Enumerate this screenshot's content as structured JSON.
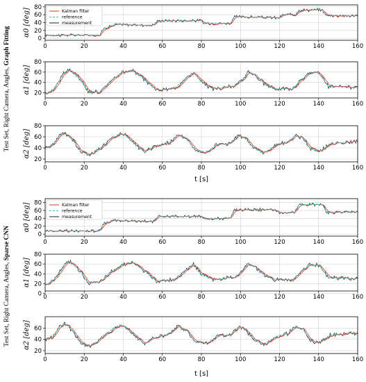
{
  "colors": {
    "kalman": "#e8452c",
    "reference": "#2ec4c8",
    "measurement": "#333333",
    "grid": "#cfcfcf"
  },
  "groups": [
    {
      "label_prefix": "Test Set, Right Camera, Angles, ",
      "label_bold": "Graph Fitting"
    },
    {
      "label_prefix": "Test Set, Right Camera, Angles, ",
      "label_bold": "Sparse CNN"
    }
  ],
  "chart_data": [
    {
      "type": "line",
      "group": 0,
      "ylabel": "α0 [deg]",
      "xlabel": "",
      "xlim": [
        0,
        160
      ],
      "ylim": [
        -5,
        85
      ],
      "yticks": [
        0,
        20,
        40,
        60,
        80
      ],
      "xticks": [
        0,
        20,
        40,
        60,
        80,
        100,
        120,
        140,
        160
      ],
      "grid": true,
      "legend": "top-left",
      "legend_entries": [
        "Kalman filter",
        "reference",
        "measurement"
      ],
      "series_ref": [
        [
          0,
          8
        ],
        [
          28,
          8
        ],
        [
          30,
          25
        ],
        [
          36,
          35
        ],
        [
          55,
          33
        ],
        [
          58,
          45
        ],
        [
          80,
          45
        ],
        [
          81,
          38
        ],
        [
          95,
          38
        ],
        [
          97,
          55
        ],
        [
          120,
          52
        ],
        [
          122,
          60
        ],
        [
          128,
          60
        ],
        [
          130,
          72
        ],
        [
          142,
          72
        ],
        [
          144,
          58
        ],
        [
          160,
          57
        ]
      ]
    },
    {
      "type": "line",
      "group": 0,
      "ylabel": "α1 [deg]",
      "xlabel": "",
      "xlim": [
        0,
        160
      ],
      "ylim": [
        10,
        80
      ],
      "yticks": [
        20,
        40,
        60,
        80
      ],
      "xticks": [
        0,
        20,
        40,
        60,
        80,
        100,
        120,
        140,
        160
      ],
      "grid": true,
      "series_ref": [
        [
          0,
          18
        ],
        [
          4,
          25
        ],
        [
          10,
          60
        ],
        [
          13,
          65
        ],
        [
          18,
          45
        ],
        [
          22,
          22
        ],
        [
          28,
          22
        ],
        [
          34,
          45
        ],
        [
          40,
          60
        ],
        [
          45,
          63
        ],
        [
          51,
          45
        ],
        [
          57,
          25
        ],
        [
          66,
          28
        ],
        [
          71,
          45
        ],
        [
          76,
          60
        ],
        [
          80,
          40
        ],
        [
          86,
          28
        ],
        [
          97,
          33
        ],
        [
          101,
          45
        ],
        [
          104,
          62
        ],
        [
          107,
          55
        ],
        [
          113,
          35
        ],
        [
          118,
          28
        ],
        [
          127,
          28
        ],
        [
          131,
          45
        ],
        [
          136,
          60
        ],
        [
          140,
          58
        ],
        [
          145,
          32
        ],
        [
          160,
          30
        ]
      ]
    },
    {
      "type": "line",
      "group": 0,
      "ylabel": "α2 [deg]",
      "xlabel": "t [s]",
      "xlim": [
        0,
        160
      ],
      "ylim": [
        15,
        80
      ],
      "yticks": [
        20,
        40,
        60,
        80
      ],
      "xticks": [
        0,
        20,
        40,
        60,
        80,
        100,
        120,
        140,
        160
      ],
      "grid": true,
      "series_ref": [
        [
          0,
          40
        ],
        [
          4,
          45
        ],
        [
          8,
          65
        ],
        [
          10,
          68
        ],
        [
          14,
          55
        ],
        [
          18,
          35
        ],
        [
          22,
          28
        ],
        [
          27,
          35
        ],
        [
          33,
          55
        ],
        [
          38,
          65
        ],
        [
          41,
          63
        ],
        [
          46,
          47
        ],
        [
          51,
          32
        ],
        [
          56,
          43
        ],
        [
          60,
          46
        ],
        [
          64,
          50
        ],
        [
          68,
          63
        ],
        [
          73,
          55
        ],
        [
          77,
          35
        ],
        [
          83,
          33
        ],
        [
          88,
          46
        ],
        [
          95,
          48
        ],
        [
          99,
          62
        ],
        [
          102,
          58
        ],
        [
          107,
          40
        ],
        [
          112,
          30
        ],
        [
          118,
          45
        ],
        [
          124,
          50
        ],
        [
          128,
          62
        ],
        [
          132,
          58
        ],
        [
          136,
          38
        ],
        [
          140,
          33
        ],
        [
          146,
          48
        ],
        [
          160,
          52
        ]
      ]
    },
    {
      "type": "line",
      "group": 1,
      "ylabel": "α0 [deg]",
      "xlabel": "",
      "xlim": [
        0,
        160
      ],
      "ylim": [
        -5,
        90
      ],
      "yticks": [
        0,
        20,
        40,
        60,
        80
      ],
      "xticks": [
        0,
        20,
        40,
        60,
        80,
        100,
        120,
        140,
        160
      ],
      "grid": true,
      "legend": "top-left",
      "legend_entries": [
        "Kalman filter",
        "reference",
        "measurement"
      ],
      "series_ref": [
        [
          0,
          8
        ],
        [
          28,
          8
        ],
        [
          30,
          28
        ],
        [
          36,
          35
        ],
        [
          55,
          32
        ],
        [
          58,
          45
        ],
        [
          80,
          45
        ],
        [
          81,
          40
        ],
        [
          95,
          40
        ],
        [
          97,
          62
        ],
        [
          118,
          62
        ],
        [
          120,
          55
        ],
        [
          128,
          55
        ],
        [
          130,
          75
        ],
        [
          142,
          75
        ],
        [
          144,
          55
        ],
        [
          160,
          55
        ]
      ]
    },
    {
      "type": "line",
      "group": 1,
      "ylabel": "α1 [deg]",
      "xlabel": "",
      "xlim": [
        0,
        160
      ],
      "ylim": [
        5,
        80
      ],
      "yticks": [
        0,
        20,
        40,
        60,
        80
      ],
      "xticks": [
        0,
        20,
        40,
        60,
        80,
        100,
        120,
        140,
        160
      ],
      "grid": true,
      "series_ref": [
        [
          0,
          18
        ],
        [
          4,
          25
        ],
        [
          10,
          60
        ],
        [
          13,
          65
        ],
        [
          18,
          45
        ],
        [
          22,
          22
        ],
        [
          28,
          22
        ],
        [
          34,
          45
        ],
        [
          40,
          60
        ],
        [
          45,
          63
        ],
        [
          51,
          45
        ],
        [
          57,
          25
        ],
        [
          66,
          28
        ],
        [
          71,
          45
        ],
        [
          76,
          60
        ],
        [
          80,
          40
        ],
        [
          86,
          28
        ],
        [
          97,
          33
        ],
        [
          101,
          45
        ],
        [
          104,
          62
        ],
        [
          107,
          55
        ],
        [
          113,
          35
        ],
        [
          118,
          28
        ],
        [
          127,
          28
        ],
        [
          131,
          45
        ],
        [
          136,
          60
        ],
        [
          140,
          58
        ],
        [
          145,
          32
        ],
        [
          160,
          30
        ]
      ]
    },
    {
      "type": "line",
      "group": 1,
      "ylabel": "α2 [deg]",
      "xlabel": "t [s]",
      "xlim": [
        0,
        160
      ],
      "ylim": [
        15,
        80
      ],
      "yticks": [
        20,
        40,
        60
      ],
      "xticks": [
        0,
        20,
        40,
        60,
        80,
        100,
        120,
        140,
        160
      ],
      "grid": true,
      "series_ref": [
        [
          0,
          40
        ],
        [
          4,
          45
        ],
        [
          8,
          65
        ],
        [
          10,
          68
        ],
        [
          14,
          55
        ],
        [
          18,
          35
        ],
        [
          22,
          28
        ],
        [
          27,
          35
        ],
        [
          33,
          55
        ],
        [
          38,
          65
        ],
        [
          41,
          63
        ],
        [
          46,
          47
        ],
        [
          51,
          32
        ],
        [
          56,
          43
        ],
        [
          60,
          46
        ],
        [
          64,
          50
        ],
        [
          68,
          63
        ],
        [
          73,
          55
        ],
        [
          77,
          35
        ],
        [
          83,
          33
        ],
        [
          88,
          46
        ],
        [
          95,
          48
        ],
        [
          99,
          62
        ],
        [
          102,
          58
        ],
        [
          107,
          40
        ],
        [
          112,
          30
        ],
        [
          118,
          45
        ],
        [
          124,
          50
        ],
        [
          128,
          62
        ],
        [
          132,
          58
        ],
        [
          136,
          38
        ],
        [
          140,
          33
        ],
        [
          146,
          48
        ],
        [
          160,
          52
        ]
      ]
    }
  ]
}
